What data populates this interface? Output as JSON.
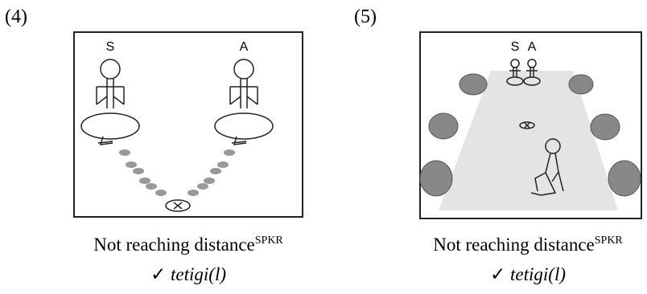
{
  "panels": [
    {
      "label": "(4)",
      "figure": {
        "left_label": "S",
        "right_label": "A"
      },
      "caption": {
        "text": "Not reaching distance",
        "superscript": "SPKR",
        "gloss_mark": "✓",
        "gloss": "tetigi(l)"
      }
    },
    {
      "label": "(5)",
      "figure": {
        "left_label": "S",
        "right_label": "A"
      },
      "caption": {
        "text": "Not reaching distance",
        "superscript": "SPKR",
        "gloss_mark": "✓",
        "gloss": "tetigi(l)"
      }
    }
  ]
}
